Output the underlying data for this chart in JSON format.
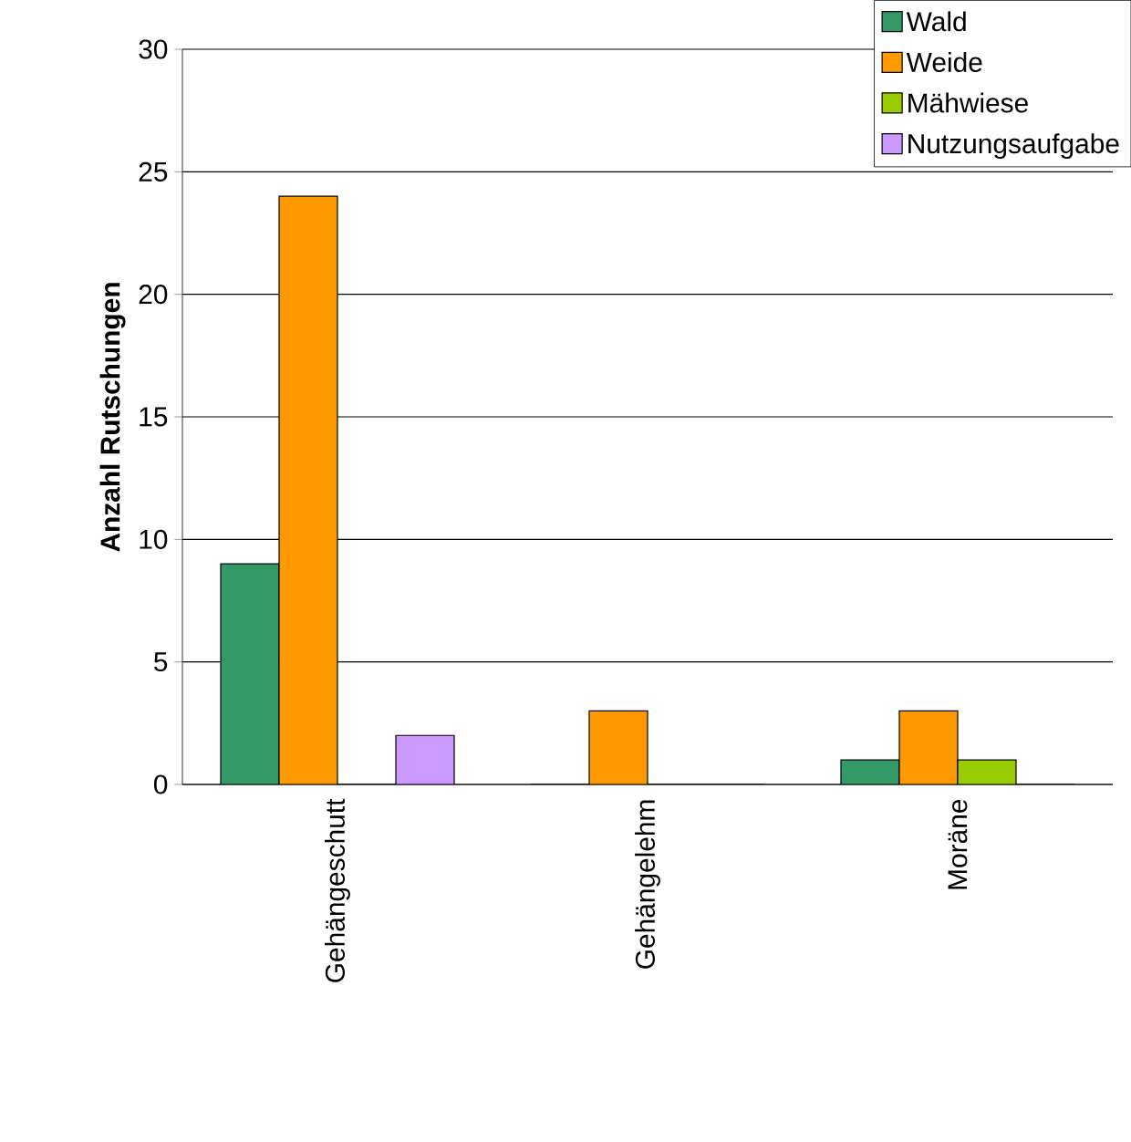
{
  "chart_data": {
    "type": "bar",
    "ylabel": "Anzahl Rutschungen",
    "categories": [
      "Gehängeschutt",
      "Gehängelehm",
      "Moräne"
    ],
    "series": [
      {
        "name": "Wald",
        "color": "#339966",
        "values": [
          9,
          0,
          1
        ]
      },
      {
        "name": "Weide",
        "color": "#ff9900",
        "values": [
          24,
          3,
          3
        ]
      },
      {
        "name": "Mähwiese",
        "color": "#99cc00",
        "values": [
          0,
          0,
          1
        ]
      },
      {
        "name": "Nutzungsaufgabe",
        "color": "#cc99ff",
        "values": [
          2,
          0,
          0
        ]
      }
    ],
    "ylim": [
      0,
      30
    ],
    "yticks": [
      0,
      5,
      10,
      15,
      20,
      25,
      30
    ],
    "grid": "y",
    "legend": "top right"
  }
}
